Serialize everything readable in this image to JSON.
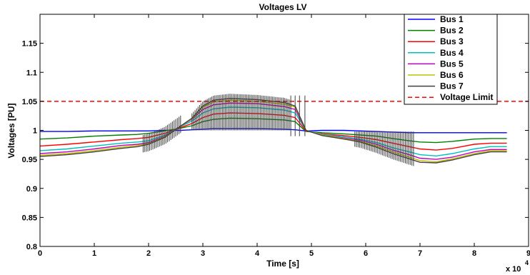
{
  "chart_data": {
    "type": "line",
    "title": "Voltages LV",
    "xlabel": "Time [s]",
    "ylabel": "Voltages [PU]",
    "x_multiplier_label": "x 10",
    "x_multiplier_exponent": "4",
    "xlim": [
      0,
      9
    ],
    "ylim": [
      0.8,
      1.2
    ],
    "x_ticks": [
      0,
      1,
      2,
      3,
      4,
      5,
      6,
      7,
      8,
      9
    ],
    "y_ticks": [
      0.8,
      0.85,
      0.9,
      0.95,
      1.0,
      1.05,
      1.1,
      1.15
    ],
    "x_tick_labels": [
      "0",
      "1",
      "2",
      "3",
      "4",
      "5",
      "6",
      "7",
      "8",
      "9"
    ],
    "y_tick_labels": [
      "0.8",
      "0.85",
      "0.9",
      "0.95",
      "1",
      "1.05",
      "1.1",
      "1.15"
    ],
    "grid": false,
    "legend_position": "top-right",
    "x": [
      0,
      0.5,
      1,
      1.5,
      1.8,
      2.0,
      2.3,
      2.6,
      2.8,
      3.0,
      3.2,
      3.5,
      4.0,
      4.5,
      4.7,
      4.9,
      5.2,
      5.6,
      5.9,
      6.2,
      6.5,
      6.8,
      7.0,
      7.3,
      7.6,
      8.0,
      8.3,
      8.6
    ],
    "series": [
      {
        "name": "Bus 1",
        "color": "#0000ff",
        "values": [
          0.998,
          0.998,
          0.999,
          0.999,
          0.999,
          0.999,
          1.0,
          1.0,
          1.001,
          1.002,
          1.003,
          1.003,
          1.003,
          1.002,
          1.001,
          0.999,
          1.0,
          1.0,
          0.999,
          0.998,
          0.997,
          0.996,
          0.996,
          0.996,
          0.996,
          0.996,
          0.996,
          0.996
        ]
      },
      {
        "name": "Bus 2",
        "color": "#008000",
        "values": [
          0.985,
          0.987,
          0.99,
          0.992,
          0.993,
          0.995,
          0.999,
          1.004,
          1.008,
          1.015,
          1.019,
          1.021,
          1.02,
          1.018,
          1.015,
          0.998,
          0.996,
          0.994,
          0.992,
          0.99,
          0.986,
          0.982,
          0.98,
          0.979,
          0.981,
          0.985,
          0.986,
          0.986
        ]
      },
      {
        "name": "Bus 3",
        "color": "#ff0000",
        "values": [
          0.973,
          0.976,
          0.98,
          0.984,
          0.986,
          0.988,
          0.995,
          1.005,
          1.012,
          1.022,
          1.028,
          1.03,
          1.029,
          1.026,
          1.022,
          0.999,
          0.994,
          0.991,
          0.988,
          0.984,
          0.978,
          0.972,
          0.968,
          0.966,
          0.969,
          0.976,
          0.978,
          0.978
        ]
      },
      {
        "name": "Bus 4",
        "color": "#00bfbf",
        "values": [
          0.965,
          0.968,
          0.973,
          0.978,
          0.98,
          0.982,
          0.992,
          1.007,
          1.016,
          1.03,
          1.037,
          1.04,
          1.039,
          1.035,
          1.03,
          1.0,
          0.993,
          0.989,
          0.985,
          0.979,
          0.97,
          0.963,
          0.958,
          0.956,
          0.96,
          0.968,
          0.972,
          0.972
        ]
      },
      {
        "name": "Bus 5",
        "color": "#bf00bf",
        "values": [
          0.96,
          0.963,
          0.968,
          0.974,
          0.976,
          0.979,
          0.99,
          1.008,
          1.019,
          1.036,
          1.044,
          1.047,
          1.046,
          1.041,
          1.036,
          1.0,
          0.992,
          0.987,
          0.983,
          0.976,
          0.966,
          0.958,
          0.952,
          0.95,
          0.954,
          0.963,
          0.967,
          0.967
        ]
      },
      {
        "name": "Bus 6",
        "color": "#bfbf00",
        "values": [
          0.957,
          0.96,
          0.965,
          0.971,
          0.974,
          0.977,
          0.989,
          1.008,
          1.02,
          1.04,
          1.049,
          1.052,
          1.05,
          1.045,
          1.04,
          1.0,
          0.992,
          0.986,
          0.981,
          0.973,
          0.963,
          0.954,
          0.948,
          0.946,
          0.951,
          0.96,
          0.965,
          0.965
        ]
      },
      {
        "name": "Bus 7",
        "color": "#404040",
        "values": [
          0.955,
          0.958,
          0.963,
          0.969,
          0.972,
          0.976,
          0.988,
          1.008,
          1.021,
          1.042,
          1.052,
          1.055,
          1.053,
          1.048,
          1.042,
          1.0,
          0.991,
          0.985,
          0.98,
          0.971,
          0.96,
          0.951,
          0.945,
          0.944,
          0.949,
          0.958,
          0.963,
          0.963
        ]
      },
      {
        "name": "Voltage Limit",
        "color": "#ff0000",
        "dashed": true,
        "values_constant": 1.05
      }
    ]
  }
}
